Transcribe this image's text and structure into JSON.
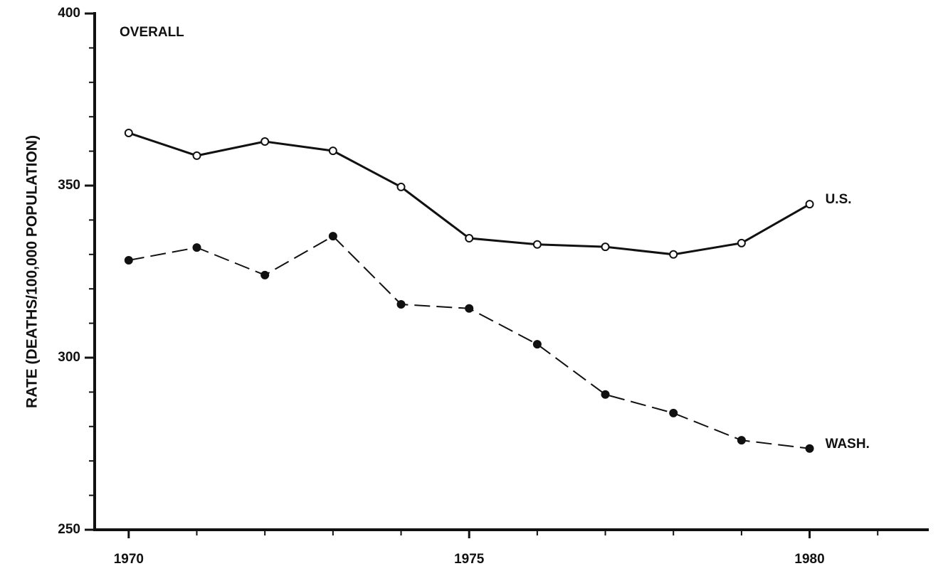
{
  "chart_data": {
    "type": "line",
    "title": "OVERALL",
    "y_label": "RATE  (DEATHS/100,000  POPULATION)",
    "x": [
      1970,
      1971,
      1972,
      1973,
      1974,
      1975,
      1976,
      1977,
      1978,
      1979,
      1980
    ],
    "series": [
      {
        "name": "U.S.",
        "color": "#111111",
        "dash": "solid",
        "marker": "open",
        "values": [
          365.3,
          358.7,
          362.8,
          360.1,
          349.6,
          334.7,
          332.9,
          332.2,
          330.0,
          333.3,
          344.6
        ]
      },
      {
        "name": "WASH.",
        "color": "#111111",
        "dash": "dashed",
        "marker": "filled",
        "values": [
          328.3,
          332.0,
          324.0,
          335.3,
          315.5,
          314.3,
          303.9,
          289.3,
          283.9,
          276.0,
          273.6
        ]
      }
    ],
    "xlim": [
      1969.5,
      1981.75
    ],
    "xticks": [
      1970,
      1975,
      1980
    ],
    "xminor_ticks": [
      1971,
      1972,
      1973,
      1974,
      1976,
      1977,
      1978,
      1979,
      1981
    ],
    "ylim": [
      250,
      400
    ],
    "yticks": [
      250,
      300,
      350,
      400
    ],
    "yminor_ticks": [
      260,
      270,
      280,
      290,
      310,
      320,
      330,
      340,
      360,
      370,
      380,
      390
    ],
    "grid": false
  }
}
